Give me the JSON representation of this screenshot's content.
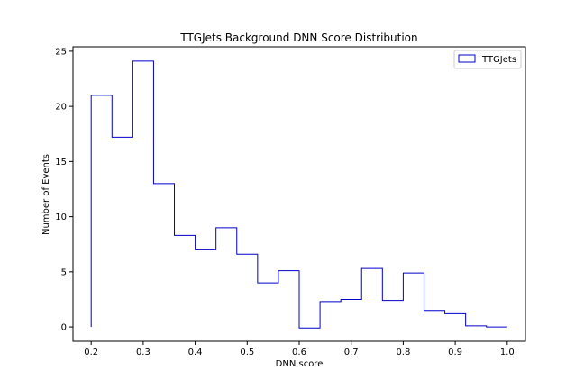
{
  "chart_data": {
    "type": "histogram-step",
    "title": "TTGJets Background DNN Score Distribution",
    "xlabel": "DNN score",
    "ylabel": "Number of Events",
    "xlim": [
      0.165,
      1.035
    ],
    "ylim": [
      -1.3,
      25.4
    ],
    "xticks": [
      0.2,
      0.3,
      0.4,
      0.5,
      0.6,
      0.7,
      0.8,
      0.9,
      1.0
    ],
    "xtick_labels": [
      "0.2",
      "0.3",
      "0.4",
      "0.5",
      "0.6",
      "0.7",
      "0.8",
      "0.9",
      "1.0"
    ],
    "yticks": [
      0,
      5,
      10,
      15,
      20,
      25
    ],
    "ytick_labels": [
      "0",
      "5",
      "10",
      "15",
      "20",
      "25"
    ],
    "bin_edges": [
      0.2,
      0.24,
      0.28,
      0.32,
      0.36,
      0.4,
      0.44,
      0.48,
      0.52,
      0.56,
      0.6,
      0.64,
      0.68,
      0.72,
      0.76,
      0.8,
      0.84,
      0.88,
      0.92,
      0.96,
      1.0
    ],
    "series": [
      {
        "name": "TTGJets",
        "color": "#0000cc",
        "values": [
          21.0,
          17.2,
          24.1,
          13.0,
          8.3,
          7.0,
          9.0,
          6.6,
          4.0,
          5.1,
          -0.1,
          2.3,
          2.5,
          5.3,
          2.4,
          4.9,
          1.5,
          1.2,
          0.1,
          0.0
        ]
      }
    ],
    "grid": false,
    "legend_position": "top-right"
  }
}
